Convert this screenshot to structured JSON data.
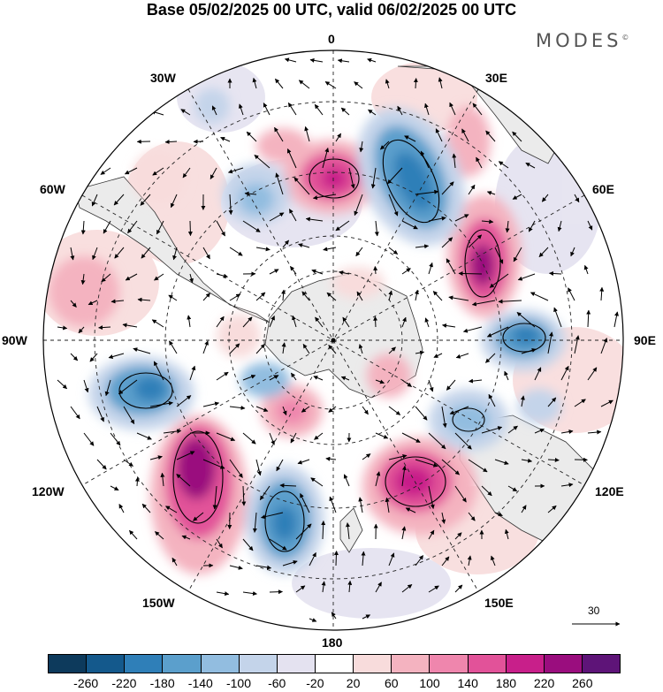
{
  "title": "Base 05/02/2025 00 UTC, valid 06/02/2025 00 UTC",
  "brand": "MODES",
  "brand_mark": "©",
  "longitude_labels": {
    "top": "0",
    "top_right": "30E",
    "right_upper": "60E",
    "right": "90E",
    "right_lower": "120E",
    "bottom_right": "150E",
    "bottom": "180",
    "bottom_left": "150W",
    "left_lower": "120W",
    "left": "90W",
    "left_upper": "60W",
    "top_left": "30W"
  },
  "reference_vector": "30",
  "colorbar": {
    "colors": [
      "#0d3a5c",
      "#14598c",
      "#2f7fb8",
      "#5b9fcc",
      "#92bde0",
      "#c4d4ea",
      "#e4e2f0",
      "#ffffff",
      "#f8dcdc",
      "#f4b3c0",
      "#ef86ad",
      "#e25299",
      "#c81f8a",
      "#9a0d7e",
      "#5e1478"
    ],
    "tick_labels": [
      "-260",
      "-220",
      "-180",
      "-140",
      "-100",
      "-60",
      "-20",
      "20",
      "60",
      "100",
      "140",
      "180",
      "220",
      "260"
    ]
  },
  "icons": {
    "land": "land-mask",
    "arrow": "wind-arrow-icon"
  }
}
